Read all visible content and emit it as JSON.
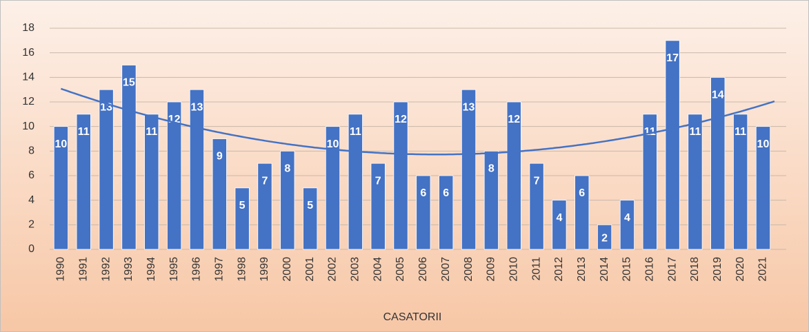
{
  "chart_data": {
    "type": "bar",
    "x_label": "CASATORII",
    "categories": [
      "1990",
      "1991",
      "1992",
      "1993",
      "1994",
      "1995",
      "1996",
      "1997",
      "1998",
      "1999",
      "2000",
      "2001",
      "2002",
      "2003",
      "2004",
      "2005",
      "2006",
      "2007",
      "2008",
      "2009",
      "2010",
      "2011",
      "2012",
      "2013",
      "2014",
      "2015",
      "2016",
      "2017",
      "2018",
      "2019",
      "2020",
      "2021"
    ],
    "values": [
      10,
      11,
      13,
      15,
      11,
      12,
      13,
      9,
      5,
      7,
      8,
      5,
      10,
      11,
      7,
      12,
      6,
      6,
      13,
      8,
      12,
      7,
      4,
      6,
      2,
      4,
      11,
      17,
      11,
      14,
      11,
      10
    ],
    "color": "#4472c4",
    "ylim": [
      0,
      18
    ],
    "yticks": [
      0,
      2,
      4,
      6,
      8,
      10,
      12,
      14,
      16,
      18
    ],
    "grid": true,
    "trendline": {
      "type": "polynomial",
      "order": 2,
      "color": "#4472c4"
    }
  }
}
